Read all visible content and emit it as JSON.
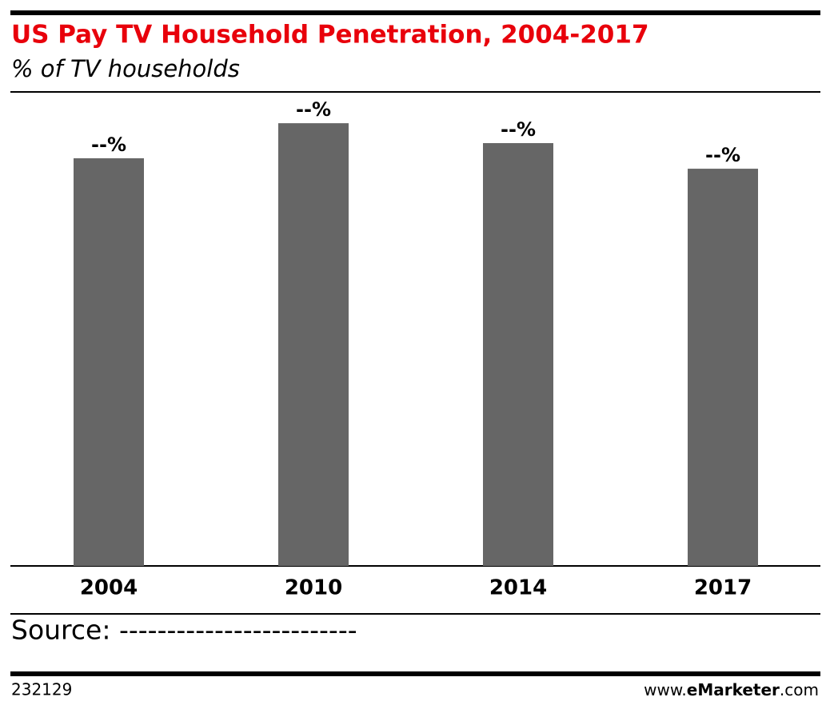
{
  "chart_data": {
    "type": "bar",
    "title": "US Pay TV Household Penetration, 2004-2017",
    "subtitle": "% of TV households",
    "categories": [
      "2004",
      "2010",
      "2014",
      "2017"
    ],
    "values": [
      86.0,
      93.4,
      89.2,
      83.8
    ],
    "value_labels": [
      "--%",
      "--%",
      "--%",
      "--%"
    ],
    "color": "#666666",
    "ylim": [
      0,
      100
    ],
    "source": "Source: -------------------------",
    "chart_id": "232129",
    "credit": [
      "www.",
      "eMarketer",
      ".com"
    ]
  }
}
